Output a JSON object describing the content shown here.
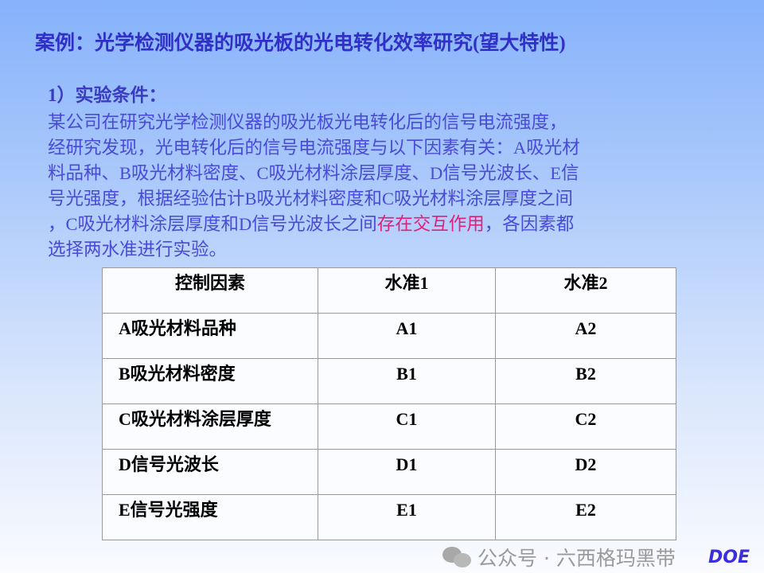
{
  "title": "案例：光学检测仪器的吸光板的光电转化效率研究(望大特性)",
  "section": "1）实验条件：",
  "paragraph": {
    "lines": [
      "某公司在研究光学检测仪器的吸光板光电转化后的信号电流强度，",
      "经研究发现，光电转化后的信号电流强度与以下因素有关：A吸光材",
      "料品种、B吸光材料密度、C吸光材料涂层厚度、D信号光波长、E信",
      "号光强度，根据经验估计B吸光材料密度和C吸光材料涂层厚度之间",
      "，C吸光材料涂层厚度和D信号光波长之间"
    ],
    "highlight": "存在交互作用",
    "after_highlight": "，各因素都",
    "last_line": "选择两水准进行实验。",
    "highlight_color": "#e0207a"
  },
  "table": {
    "headers": [
      "控制因素",
      "水准1",
      "水准2"
    ],
    "rows": [
      [
        "A吸光材料品种",
        "A1",
        "A2"
      ],
      [
        "B吸光材料密度",
        "B1",
        "B2"
      ],
      [
        "C吸光材料涂层厚度",
        "C1",
        "C2"
      ],
      [
        "D信号光波长",
        "D1",
        "D2"
      ],
      [
        "E信号光强度",
        "E1",
        "E2"
      ]
    ]
  },
  "watermark": "公众号 · 六西格玛黑带",
  "logo": "DOE"
}
